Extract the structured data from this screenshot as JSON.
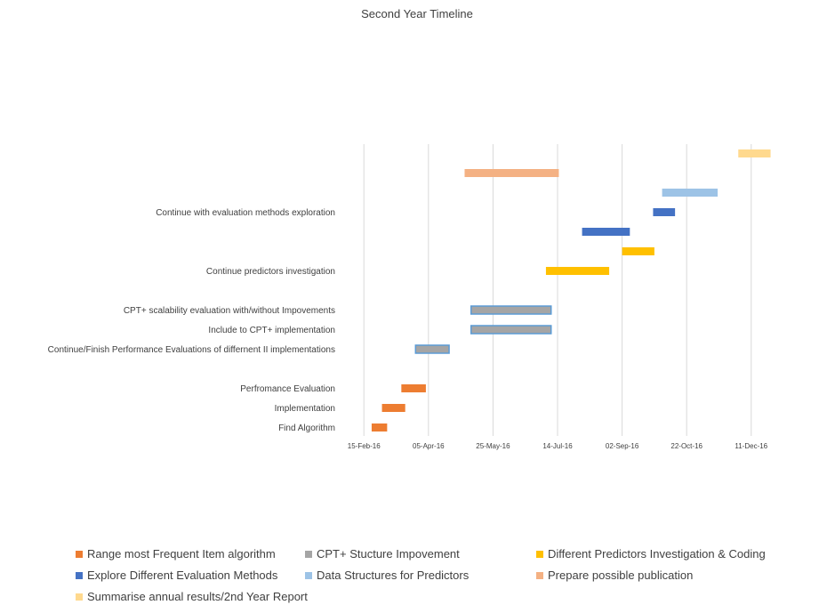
{
  "chart_data": {
    "type": "gantt",
    "title": "Second Year Timeline",
    "x_ticks": [
      "15-Feb-16",
      "05-Apr-16",
      "25-May-16",
      "14-Jul-16",
      "02-Sep-16",
      "22-Oct-16",
      "11-Dec-16"
    ],
    "xlim": [
      "2016-01-30",
      "2016-12-27"
    ],
    "grid": true,
    "legend_position": "bottom",
    "rows": [
      {
        "label": "",
        "series": 6,
        "start": "2016-12-01",
        "end": "2016-12-26"
      },
      {
        "label": "",
        "series": 5,
        "start": "2016-05-03",
        "end": "2016-07-15"
      },
      {
        "label": "",
        "series": 4,
        "start": "2016-10-03",
        "end": "2016-11-15"
      },
      {
        "label": "Continue with evaluation methods exploration",
        "series": 3,
        "start": "2016-09-26",
        "end": "2016-10-13"
      },
      {
        "label": "",
        "series": 3,
        "start": "2016-08-02",
        "end": "2016-09-08"
      },
      {
        "label": "",
        "series": 2,
        "start": "2016-09-02",
        "end": "2016-09-27"
      },
      {
        "label": "Continue predictors investigation",
        "series": 2,
        "start": "2016-07-05",
        "end": "2016-08-23"
      },
      {
        "label": "",
        "series": 2,
        "start": "",
        "end": ""
      },
      {
        "label": "CPT+  scalability evaluation with/without Impovements",
        "series": 1,
        "start": "2016-05-08",
        "end": "2016-07-09"
      },
      {
        "label": "Include to CPT+ implementation",
        "series": 1,
        "start": "2016-05-08",
        "end": "2016-07-09"
      },
      {
        "label": "Continue/Finish  Performance Evaluations of differnent II implementations",
        "series": 1,
        "start": "2016-03-26",
        "end": "2016-04-21"
      },
      {
        "label": "",
        "series": 1,
        "start": "",
        "end": ""
      },
      {
        "label": "Perfromance Evaluation",
        "series": 0,
        "start": "2016-03-15",
        "end": "2016-04-03"
      },
      {
        "label": "Implementation",
        "series": 0,
        "start": "2016-02-29",
        "end": "2016-03-18"
      },
      {
        "label": "Find Algorithm",
        "series": 0,
        "start": "2016-02-21",
        "end": "2016-03-04"
      }
    ],
    "series": [
      {
        "name": "Range most Frequent Item algorithm",
        "color": "#ED7D31"
      },
      {
        "name": "CPT+ Stucture Impovement",
        "color": "#A5A5A5",
        "outline": "#5B9BD5"
      },
      {
        "name": "Different Predictors Investigation & Coding",
        "color": "#FFC000"
      },
      {
        "name": "Explore Different Evaluation Methods",
        "color": "#4472C4"
      },
      {
        "name": "Data Structures for Predictors",
        "color": "#9DC3E6"
      },
      {
        "name": "Prepare possible publication",
        "color": "#F4B183"
      },
      {
        "name": "Summarise annual results/2nd Year Report",
        "color": "#FFD98E"
      }
    ]
  }
}
